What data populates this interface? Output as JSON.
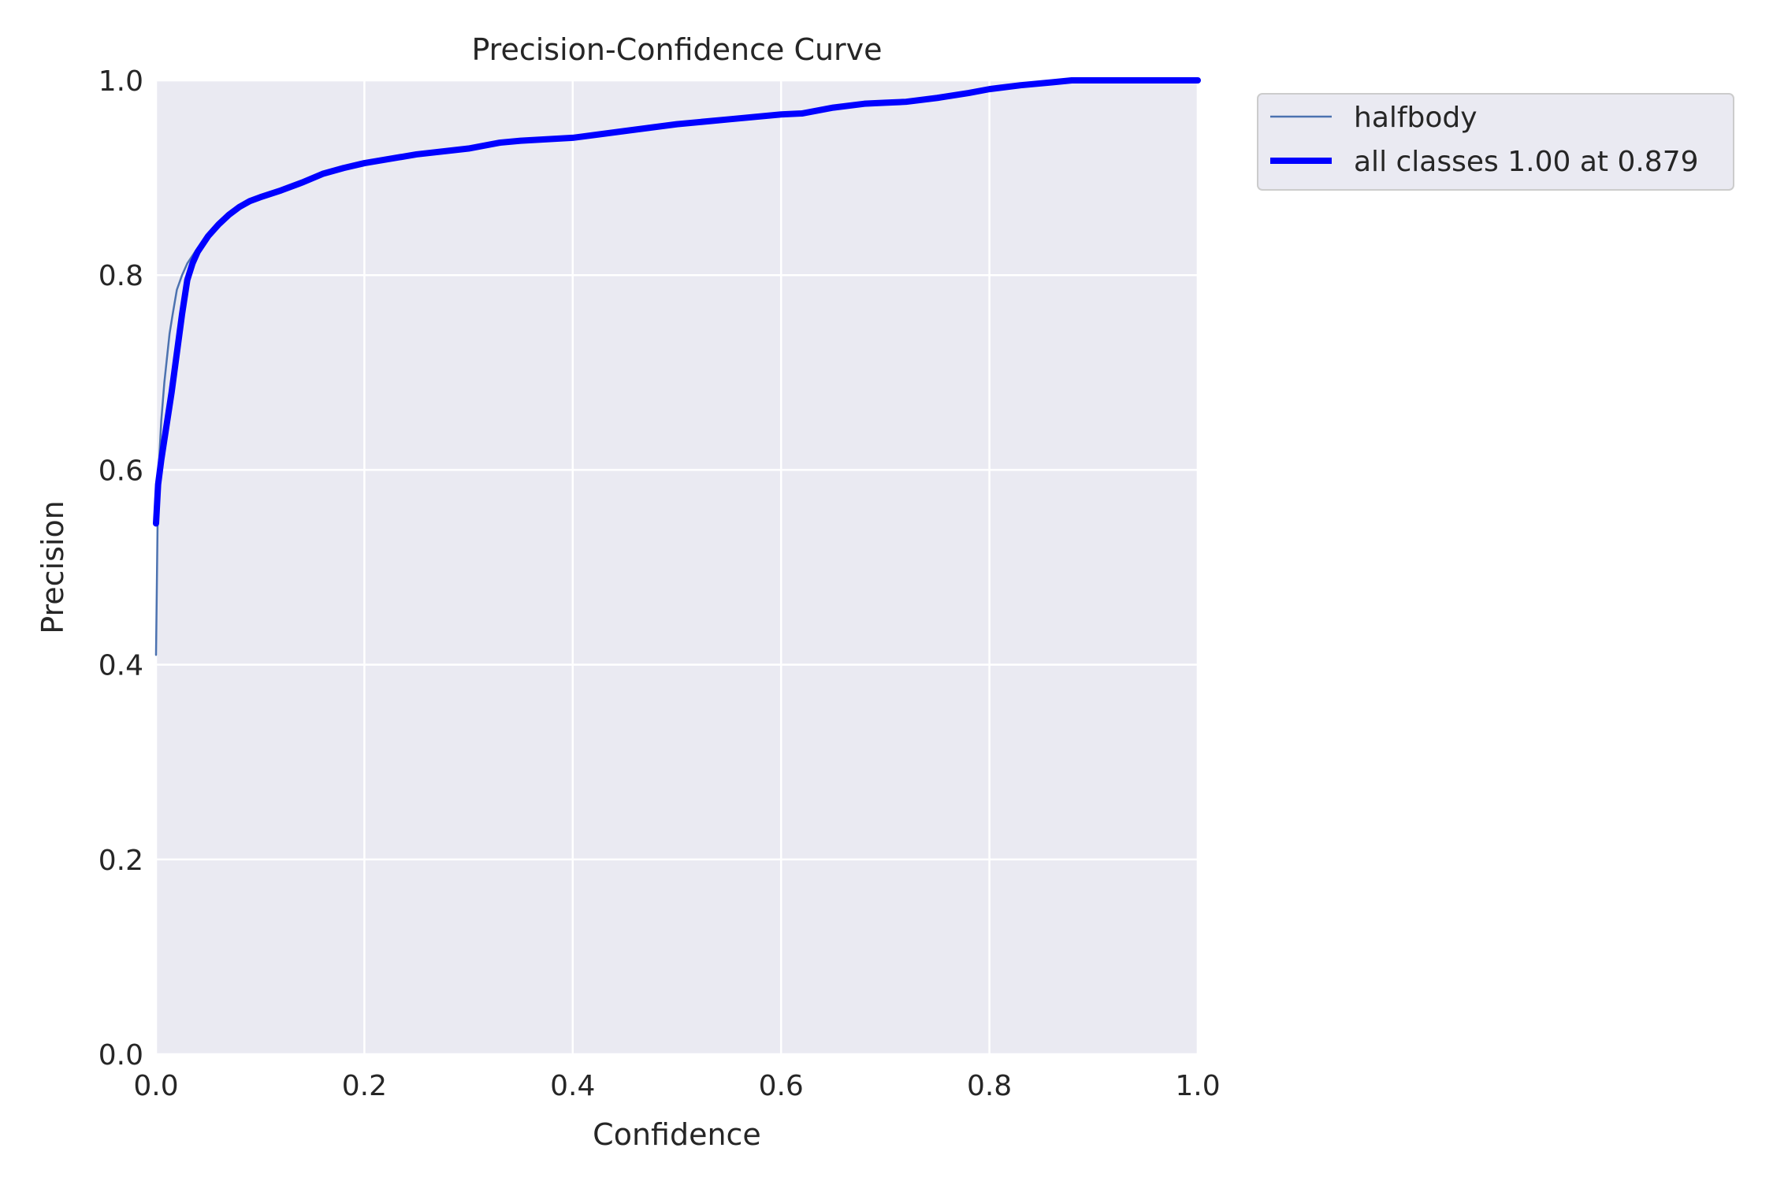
{
  "chart_data": {
    "type": "line",
    "title": "Precision-Confidence Curve",
    "xlabel": "Confidence",
    "ylabel": "Precision",
    "xlim": [
      0,
      1
    ],
    "ylim": [
      0,
      1
    ],
    "xticks": [
      "0.0",
      "0.2",
      "0.4",
      "0.6",
      "0.8",
      "1.0"
    ],
    "yticks": [
      "0.0",
      "0.2",
      "0.4",
      "0.6",
      "0.8",
      "1.0"
    ],
    "grid": true,
    "legend_position": "outside-top-right",
    "background_color": "#EAEAF2",
    "grid_color": "#FFFFFF",
    "series": [
      {
        "name": "halfbody",
        "color": "#4C72B0",
        "linewidth": "thin",
        "x": [
          0.0,
          0.002,
          0.005,
          0.008,
          0.01,
          0.013,
          0.016,
          0.02,
          0.025,
          0.03,
          0.035,
          0.04,
          0.05,
          0.06,
          0.07,
          0.08,
          0.09,
          0.1,
          0.12,
          0.14,
          0.16,
          0.18,
          0.2,
          0.25,
          0.3,
          0.33,
          0.35,
          0.4,
          0.45,
          0.5,
          0.55,
          0.6,
          0.62,
          0.65,
          0.68,
          0.7,
          0.72,
          0.75,
          0.78,
          0.8,
          0.83,
          0.86,
          0.88,
          0.9,
          0.95,
          1.0
        ],
        "y": [
          0.41,
          0.59,
          0.65,
          0.69,
          0.71,
          0.74,
          0.76,
          0.785,
          0.8,
          0.812,
          0.82,
          0.828,
          0.843,
          0.855,
          0.864,
          0.872,
          0.877,
          0.881,
          0.888,
          0.897,
          0.905,
          0.911,
          0.915,
          0.924,
          0.93,
          0.936,
          0.938,
          0.941,
          0.948,
          0.955,
          0.96,
          0.965,
          0.966,
          0.972,
          0.976,
          0.977,
          0.978,
          0.982,
          0.987,
          0.991,
          0.995,
          0.997,
          1.0,
          1.0,
          1.0,
          1.0
        ]
      },
      {
        "name": "all classes 1.00 at 0.879",
        "color": "#0000FF",
        "linewidth": "thick",
        "x": [
          0.0,
          0.002,
          0.005,
          0.01,
          0.015,
          0.02,
          0.025,
          0.03,
          0.035,
          0.04,
          0.05,
          0.06,
          0.07,
          0.08,
          0.09,
          0.1,
          0.12,
          0.14,
          0.16,
          0.18,
          0.2,
          0.25,
          0.3,
          0.33,
          0.35,
          0.4,
          0.45,
          0.5,
          0.55,
          0.6,
          0.62,
          0.65,
          0.68,
          0.7,
          0.72,
          0.75,
          0.78,
          0.8,
          0.83,
          0.86,
          0.879,
          0.9,
          0.95,
          1.0
        ],
        "y": [
          0.545,
          0.585,
          0.61,
          0.645,
          0.68,
          0.72,
          0.76,
          0.795,
          0.812,
          0.824,
          0.84,
          0.852,
          0.862,
          0.87,
          0.876,
          0.88,
          0.887,
          0.895,
          0.904,
          0.91,
          0.915,
          0.924,
          0.93,
          0.936,
          0.938,
          0.941,
          0.948,
          0.955,
          0.96,
          0.965,
          0.966,
          0.972,
          0.976,
          0.977,
          0.978,
          0.982,
          0.987,
          0.991,
          0.995,
          0.998,
          1.0,
          1.0,
          1.0,
          1.0
        ]
      }
    ]
  }
}
